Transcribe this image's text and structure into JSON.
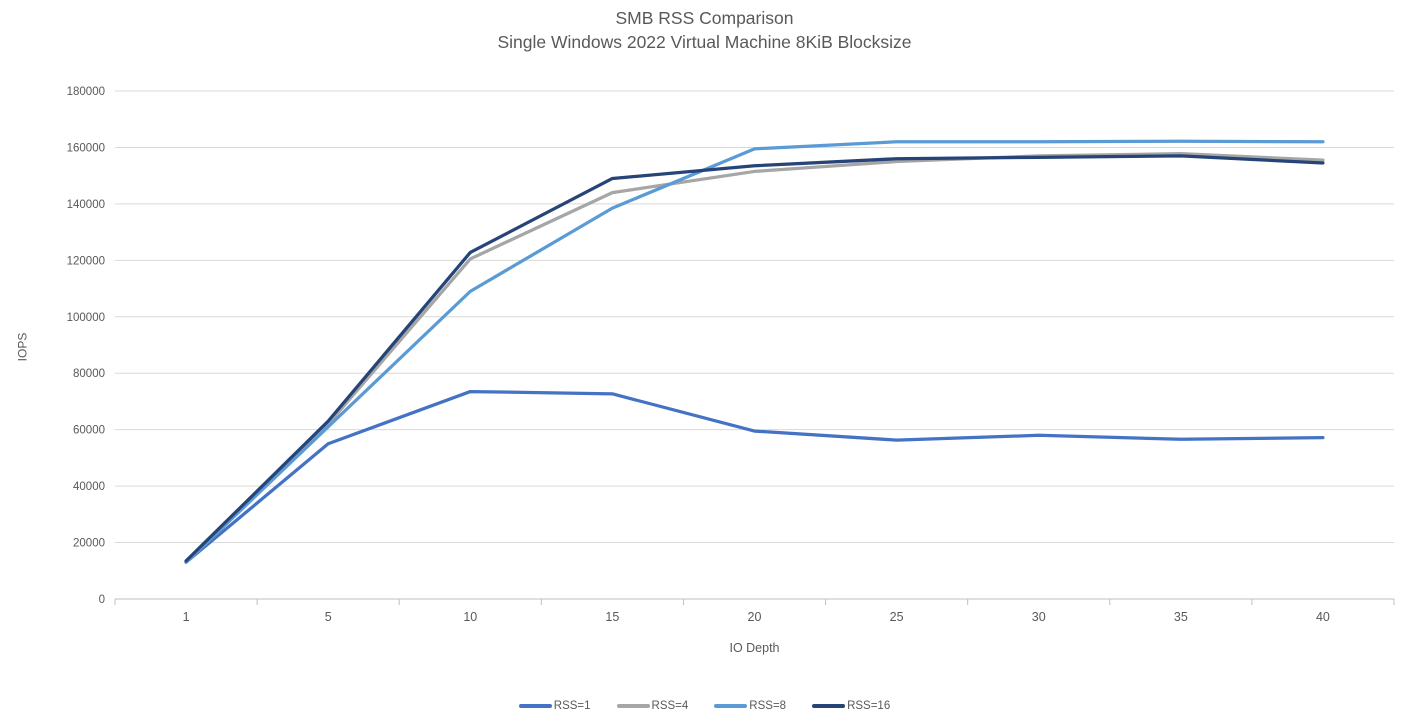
{
  "title": {
    "line1": "SMB RSS Comparison",
    "line2": "Single Windows 2022 Virtual Machine 8KiB Blocksize"
  },
  "chart_data": {
    "type": "line",
    "title": "SMB RSS Comparison",
    "subtitle": "Single Windows 2022 Virtual Machine 8KiB Blocksize",
    "xlabel": "IO Depth",
    "ylabel": "IOPS",
    "categories": [
      1,
      5,
      10,
      15,
      20,
      25,
      30,
      35,
      40
    ],
    "ylim": [
      0,
      180000
    ],
    "ytick_step": 20000,
    "ytick_labels": [
      "0",
      "20000",
      "40000",
      "60000",
      "80000",
      "100000",
      "120000",
      "140000",
      "160000",
      "180000"
    ],
    "grid": "horizontal",
    "legend_position": "bottom",
    "series": [
      {
        "name": "RSS=1",
        "color": "#4472C4",
        "values": [
          13000,
          55000,
          73500,
          72700,
          59500,
          56300,
          58000,
          56600,
          57200
        ]
      },
      {
        "name": "RSS=4",
        "color": "#A6A6A6",
        "values": [
          13000,
          62000,
          120500,
          144000,
          151500,
          155000,
          157000,
          157800,
          155500
        ]
      },
      {
        "name": "RSS=8",
        "color": "#5B9BD5",
        "values": [
          13000,
          61000,
          109000,
          138500,
          159500,
          162000,
          162000,
          162200,
          162000
        ]
      },
      {
        "name": "RSS=16",
        "color": "#264478",
        "values": [
          13500,
          63000,
          122800,
          149000,
          153500,
          156000,
          156500,
          157000,
          154500
        ]
      }
    ]
  },
  "colors": {
    "text": "#595959",
    "gridline": "#D9D9D9",
    "axis": "#BFBFBF",
    "background": "#FFFFFF"
  }
}
